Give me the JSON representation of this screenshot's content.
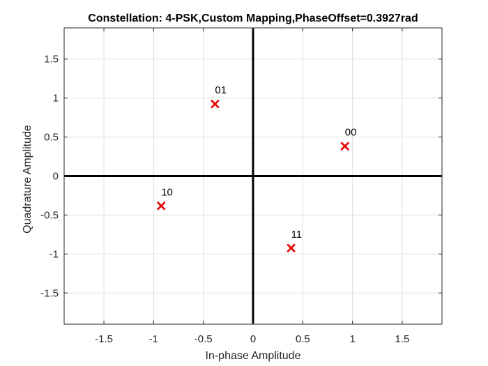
{
  "chart_data": {
    "type": "scatter",
    "title": "Constellation: 4-PSK,Custom Mapping,PhaseOffset=0.3927rad",
    "xlabel": "In-phase Amplitude",
    "ylabel": "Quadrature Amplitude",
    "xlim": [
      -1.9,
      1.9
    ],
    "ylim": [
      -1.9,
      1.9
    ],
    "xticks": [
      -1.5,
      -1,
      -0.5,
      0,
      0.5,
      1,
      1.5
    ],
    "xtick_labels": [
      "-1.5",
      "-1",
      "-0.5",
      "0",
      "0.5",
      "1",
      "1.5"
    ],
    "yticks": [
      1.5,
      1,
      0.5,
      0,
      -0.5,
      -1,
      -1.5
    ],
    "ytick_labels": [
      "1.5",
      "1",
      "0.5",
      "0",
      "-0.5",
      "-1",
      "-1.5"
    ],
    "grid": true,
    "marker": "x",
    "marker_color": "#e60000",
    "points": [
      {
        "label": "00",
        "x": 0.9239,
        "y": 0.3827
      },
      {
        "label": "01",
        "x": -0.3827,
        "y": 0.9239
      },
      {
        "label": "10",
        "x": -0.9239,
        "y": -0.3827
      },
      {
        "label": "11",
        "x": 0.3827,
        "y": -0.9239
      }
    ]
  }
}
